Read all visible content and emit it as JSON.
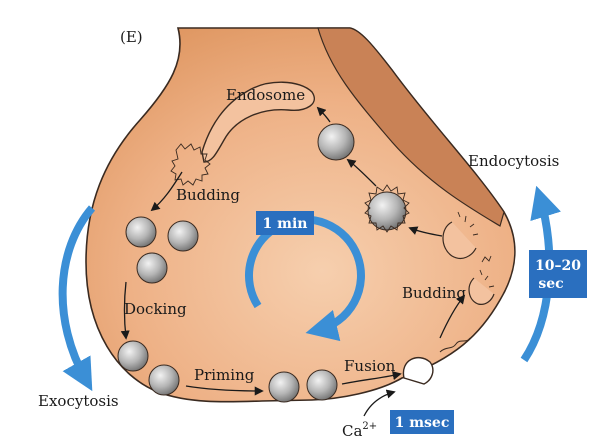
{
  "panel_label": "(E)",
  "labels": {
    "endosome": "Endosome",
    "budding_top": "Budding",
    "endocytosis": "Endocytosis",
    "docking": "Docking",
    "budding_right": "Budding",
    "priming": "Priming",
    "fusion": "Fusion",
    "exocytosis": "Exocytosis",
    "calcium_base": "Ca",
    "calcium_sup": "2+"
  },
  "timescales": {
    "center": "1 min",
    "right_line1": "10–20",
    "right_line2": "sec",
    "bottom": "1 msec"
  },
  "colors": {
    "terminal_fill": "#e8a679",
    "terminal_outline": "#3a2a20",
    "membrane_dark": "#c9825a",
    "vesicle": "#b9b9b9",
    "cycle_arrow": "#3b8fd6",
    "timescale_box": "#2a6fbf"
  }
}
